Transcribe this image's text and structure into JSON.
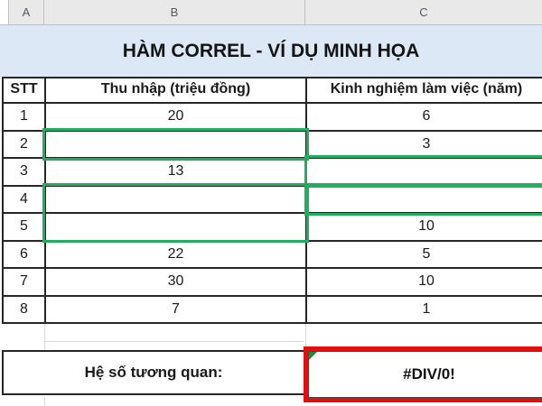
{
  "column_headers": {
    "a": "A",
    "b": "B",
    "c": "C"
  },
  "title": "HÀM CORREL - VÍ DỤ MINH HỌA",
  "table": {
    "headers": {
      "stt": "STT",
      "income": "Thu nhập (triệu đồng)",
      "experience": "Kinh nghiệm làm việc (năm)"
    },
    "rows": [
      {
        "stt": "1",
        "income": "20",
        "experience": "6"
      },
      {
        "stt": "2",
        "income": "",
        "experience": "3"
      },
      {
        "stt": "3",
        "income": "13",
        "experience": ""
      },
      {
        "stt": "4",
        "income": "",
        "experience": ""
      },
      {
        "stt": "5",
        "income": "",
        "experience": "10"
      },
      {
        "stt": "6",
        "income": "22",
        "experience": "5"
      },
      {
        "stt": "7",
        "income": "30",
        "experience": "10"
      },
      {
        "stt": "8",
        "income": "7",
        "experience": "1"
      }
    ]
  },
  "result": {
    "label": "Hệ số tương quan:",
    "value": "#DIV/0!"
  },
  "colors": {
    "header_strip_bg": "#e9e9e9",
    "title_bg": "#dce8f5",
    "grid": "#262626",
    "range_green": "#21ad5e",
    "error_red": "#e01010",
    "indicator_green": "#1d8a3f"
  }
}
